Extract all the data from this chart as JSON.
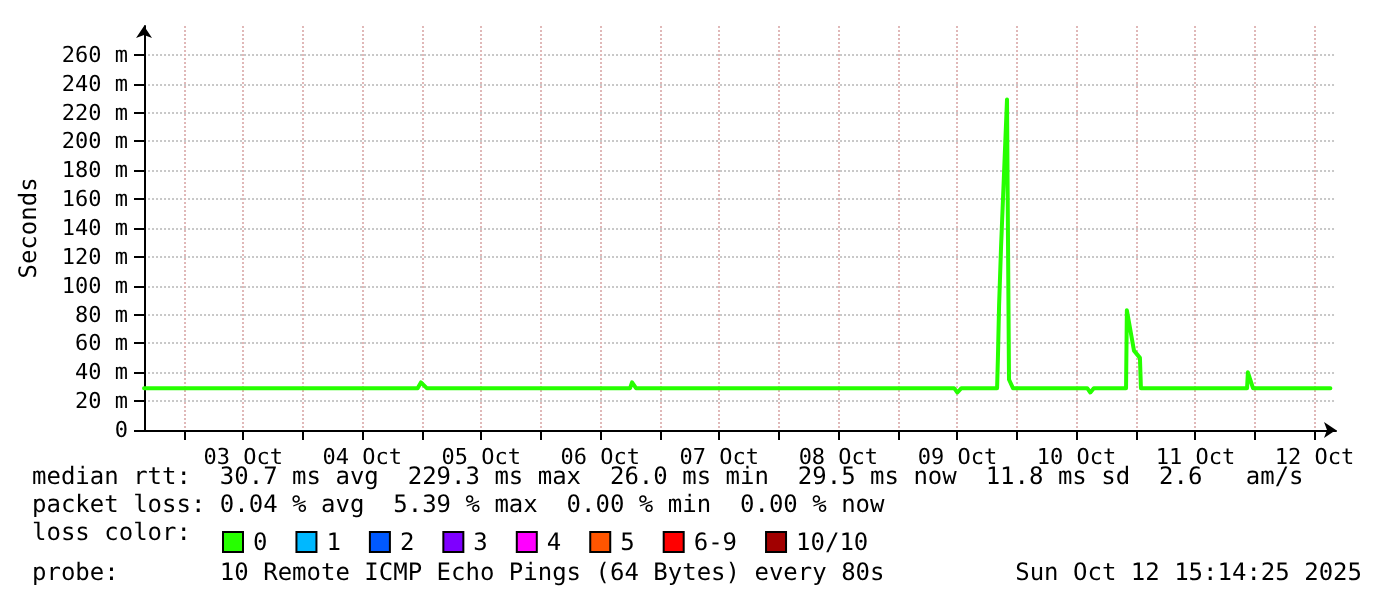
{
  "chart_data": {
    "type": "line",
    "ylabel": "Seconds",
    "legend_title": "loss color:",
    "legend": "bottom",
    "grid": true,
    "marker": "none",
    "line_style": "solid",
    "xlim": [
      "2025-10-02T16:00",
      "2025-10-12T16:20"
    ],
    "xticks": [
      {
        "value": "2025-10-03T00:00",
        "label": null
      },
      {
        "value": "2025-10-03T12:00",
        "label": "03 Oct"
      },
      {
        "value": "2025-10-04T00:00",
        "label": null
      },
      {
        "value": "2025-10-04T12:00",
        "label": "04 Oct"
      },
      {
        "value": "2025-10-05T00:00",
        "label": null
      },
      {
        "value": "2025-10-05T12:00",
        "label": "05 Oct"
      },
      {
        "value": "2025-10-06T00:00",
        "label": null
      },
      {
        "value": "2025-10-06T12:00",
        "label": "06 Oct"
      },
      {
        "value": "2025-10-07T00:00",
        "label": null
      },
      {
        "value": "2025-10-07T12:00",
        "label": "07 Oct"
      },
      {
        "value": "2025-10-08T00:00",
        "label": null
      },
      {
        "value": "2025-10-08T12:00",
        "label": "08 Oct"
      },
      {
        "value": "2025-10-09T00:00",
        "label": null
      },
      {
        "value": "2025-10-09T12:00",
        "label": "09 Oct"
      },
      {
        "value": "2025-10-10T00:00",
        "label": null
      },
      {
        "value": "2025-10-10T12:00",
        "label": "10 Oct"
      },
      {
        "value": "2025-10-11T00:00",
        "label": null
      },
      {
        "value": "2025-10-11T12:00",
        "label": "11 Oct"
      },
      {
        "value": "2025-10-12T00:00",
        "label": null
      },
      {
        "value": "2025-10-12T12:00",
        "label": "12 Oct"
      }
    ],
    "ylim": [
      0,
      280
    ],
    "yticks": [
      0,
      {
        "value": 20,
        "label": "20 m"
      },
      {
        "value": 40,
        "label": "40 m"
      },
      {
        "value": 60,
        "label": "60 m"
      },
      {
        "value": 80,
        "label": "80 m"
      },
      {
        "value": 100,
        "label": "100 m"
      },
      {
        "value": 120,
        "label": "120 m"
      },
      {
        "value": 140,
        "label": "140 m"
      },
      {
        "value": 160,
        "label": "160 m"
      },
      {
        "value": 180,
        "label": "180 m"
      },
      {
        "value": 200,
        "label": "200 m"
      },
      {
        "value": 220,
        "label": "220 m"
      },
      {
        "value": 240,
        "label": "240 m"
      },
      {
        "value": 260,
        "label": "260 m"
      }
    ],
    "x": [
      "2025-10-02T16:00",
      "2025-10-04T23:10",
      "2025-10-04T23:50",
      "2025-10-05T01:00",
      "2025-10-06T18:00",
      "2025-10-06T18:24",
      "2025-10-06T19:12",
      "2025-10-09T11:20",
      "2025-10-09T12:00",
      "2025-10-09T12:48",
      "2025-10-09T20:00",
      "2025-10-09T20:10",
      "2025-10-09T20:24",
      "2025-10-09T20:48",
      "2025-10-09T22:00",
      "2025-10-09T22:24",
      "2025-10-09T23:12",
      "2025-10-10T14:10",
      "2025-10-10T14:48",
      "2025-10-10T15:30",
      "2025-10-10T22:00",
      "2025-10-10T22:10",
      "2025-10-10T23:36",
      "2025-10-11T00:48",
      "2025-10-11T01:00",
      "2025-10-11T22:24",
      "2025-10-11T22:34",
      "2025-10-11T23:36",
      "2025-10-12T15:12"
    ],
    "series": [
      {
        "name": "0",
        "color": "#26ff00",
        "values": [
          29,
          29,
          33,
          29,
          29,
          33,
          29,
          29,
          26,
          29,
          29,
          50,
          86,
          127,
          229,
          35,
          29,
          29,
          26,
          29,
          29,
          83,
          55,
          50,
          29,
          29,
          40,
          29,
          29
        ]
      },
      {
        "name": "1",
        "color": "#00b8ff",
        "values": [
          null,
          null,
          null,
          null,
          null,
          null,
          null,
          null,
          null,
          null,
          null,
          null,
          null,
          null,
          null,
          null,
          null,
          null,
          null,
          null,
          null,
          null,
          null,
          null,
          null,
          null,
          null,
          null,
          null
        ]
      },
      {
        "name": "2",
        "color": "#0059ff",
        "values": [
          null,
          null,
          null,
          null,
          null,
          null,
          null,
          null,
          null,
          null,
          null,
          null,
          null,
          null,
          null,
          null,
          null,
          null,
          null,
          null,
          null,
          null,
          null,
          null,
          null,
          null,
          null,
          null,
          null
        ]
      },
      {
        "name": "3",
        "color": "#7e00ff",
        "values": [
          null,
          null,
          null,
          null,
          null,
          null,
          null,
          null,
          null,
          null,
          null,
          null,
          null,
          null,
          null,
          null,
          null,
          null,
          null,
          null,
          null,
          null,
          null,
          null,
          null,
          null,
          null,
          null,
          null
        ]
      },
      {
        "name": "4",
        "color": "#ff00ff",
        "values": [
          null,
          null,
          null,
          null,
          null,
          null,
          null,
          null,
          null,
          null,
          null,
          null,
          null,
          null,
          null,
          null,
          null,
          null,
          null,
          null,
          null,
          null,
          null,
          null,
          null,
          null,
          null,
          null,
          null
        ]
      },
      {
        "name": "5",
        "color": "#ff5500",
        "values": [
          null,
          null,
          null,
          null,
          null,
          null,
          null,
          null,
          null,
          null,
          null,
          null,
          null,
          null,
          null,
          null,
          null,
          null,
          null,
          null,
          null,
          null,
          null,
          null,
          null,
          null,
          null,
          null,
          null
        ]
      },
      {
        "name": "6-9",
        "color": "#ff0000",
        "values": [
          null,
          null,
          null,
          null,
          null,
          null,
          null,
          null,
          null,
          null,
          null,
          null,
          null,
          null,
          null,
          null,
          null,
          null,
          null,
          null,
          null,
          null,
          null,
          null,
          null,
          null,
          null,
          null,
          null
        ]
      },
      {
        "name": "10/10",
        "color": "#a10000",
        "values": [
          null,
          null,
          null,
          null,
          null,
          null,
          null,
          null,
          null,
          null,
          null,
          null,
          null,
          null,
          null,
          null,
          null,
          null,
          null,
          null,
          null,
          null,
          null,
          null,
          null,
          null,
          null,
          null,
          null
        ]
      }
    ],
    "annotations": [
      "median rtt:  30.7 ms avg  229.3 ms max  26.0 ms min  29.5 ms now  11.8 ms sd  2.6   am/s",
      "packet loss: 0.04 % avg  5.39 % max  0.00 % min  0.00 % now",
      "probe:       10 Remote ICMP Echo Pings (64 Bytes) every 80s",
      "Sun Oct 12 15:14:25 2025"
    ]
  }
}
